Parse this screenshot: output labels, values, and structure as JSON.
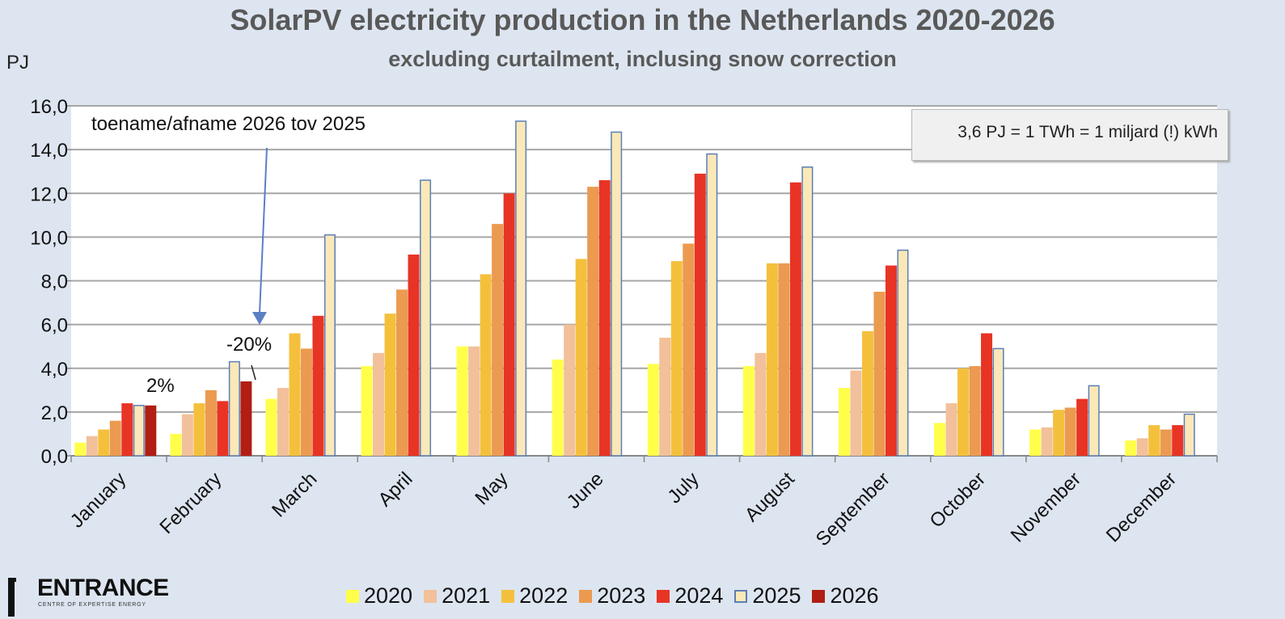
{
  "chart_data": {
    "type": "bar",
    "title": "SolarPV electricity production in the Netherlands 2020-2026",
    "subtitle": "excluding curtailment, inclusing snow correction",
    "ylabel": "PJ",
    "xlabel": "",
    "ylim": [
      0,
      16
    ],
    "yticks": [
      "0,0",
      "2,0",
      "4,0",
      "6,0",
      "8,0",
      "10,0",
      "12,0",
      "14,0",
      "16,0"
    ],
    "grid": true,
    "legend_position": "bottom",
    "categories": [
      "January",
      "February",
      "March",
      "April",
      "May",
      "June",
      "July",
      "August",
      "September",
      "October",
      "November",
      "December"
    ],
    "series": [
      {
        "name": "2020",
        "color": "#ffff4a",
        "values": [
          0.6,
          1.0,
          2.6,
          4.1,
          5.0,
          4.4,
          4.2,
          4.1,
          3.1,
          1.5,
          1.2,
          0.7
        ]
      },
      {
        "name": "2021",
        "color": "#f2c09a",
        "values": [
          0.9,
          1.9,
          3.1,
          4.7,
          5.0,
          6.0,
          5.4,
          4.7,
          3.9,
          2.4,
          1.3,
          0.8
        ]
      },
      {
        "name": "2022",
        "color": "#f4c03c",
        "values": [
          1.2,
          2.4,
          5.6,
          6.5,
          8.3,
          9.0,
          8.9,
          8.8,
          5.7,
          4.0,
          2.1,
          1.4
        ]
      },
      {
        "name": "2023",
        "color": "#eb9a50",
        "values": [
          1.6,
          3.0,
          4.9,
          7.6,
          10.6,
          12.3,
          9.7,
          8.8,
          7.5,
          4.1,
          2.2,
          1.2
        ]
      },
      {
        "name": "2024",
        "color": "#e83424",
        "values": [
          2.4,
          2.5,
          6.4,
          9.2,
          12.0,
          12.6,
          12.9,
          12.5,
          8.7,
          5.6,
          2.6,
          1.4
        ]
      },
      {
        "name": "2025",
        "color": "#fbe8b8",
        "border": "#5b7fb8",
        "values": [
          2.3,
          4.3,
          10.1,
          12.6,
          15.3,
          14.8,
          13.8,
          13.2,
          9.4,
          4.9,
          3.2,
          1.9
        ]
      },
      {
        "name": "2026",
        "color": "#b01e14",
        "values": [
          2.3,
          3.4,
          null,
          null,
          null,
          null,
          null,
          null,
          null,
          null,
          null,
          null
        ]
      }
    ],
    "annotations": [
      {
        "text": "toename/afname 2026 tov 2025",
        "target": "February 2026"
      },
      {
        "text": "2%",
        "target": "January"
      },
      {
        "text": "-20%",
        "target": "February"
      },
      {
        "text": "3,6 PJ = 1 TWh = 1 miljard (!) kWh",
        "type": "note"
      }
    ]
  },
  "logo": {
    "name": "ENTRANCE",
    "tagline": "CENTRE OF EXPERTISE ENERGY"
  }
}
